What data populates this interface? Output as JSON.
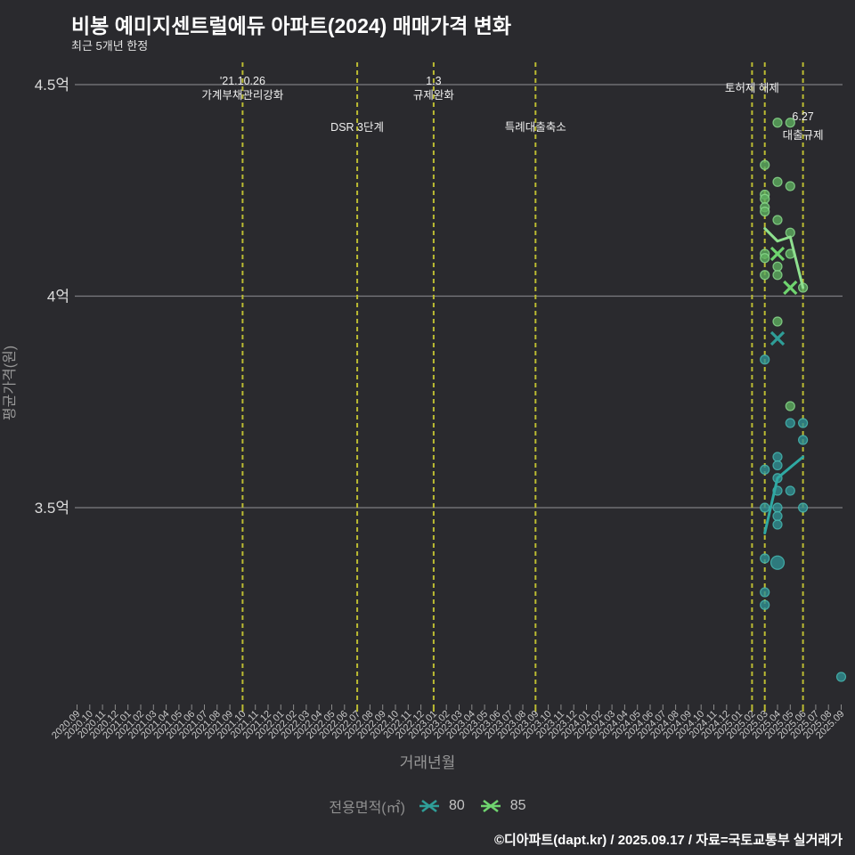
{
  "page": {
    "title": "비봉 예미지센트럴에듀 아파트(2024) 매매가격 변화",
    "subtitle": "최근 5개년 한정",
    "footer": "©디아파트(dapt.kr) / 2025.09.17 / 자료=국토교통부 실거래가"
  },
  "colors": {
    "background": "#2a2a2e",
    "grid_line": "#7d7d82",
    "event_line": "#bcbc32",
    "annotation_text": "#efefef",
    "tick_mark": "#8a8a8a",
    "tick_label": "#c9c9c9",
    "y_tick_label": "#dcdcdc",
    "axis_title": "#979797"
  },
  "chart_data": {
    "type": "scatter",
    "title": "비봉 예미지센트럴에듀 아파트(2024) 매매가격 변화",
    "xlabel": "거래년월",
    "ylabel": "평균가격(원)",
    "unit": "억",
    "y_ticks": [
      {
        "label": "4.5억",
        "value": 4.5
      },
      {
        "label": "4억",
        "value": 4.0
      },
      {
        "label": "3.5억",
        "value": 3.5
      }
    ],
    "y_range": [
      3.0,
      4.55
    ],
    "x_categories": [
      "2020.09",
      "2020.10",
      "2020.11",
      "2020.12",
      "2021.01",
      "2021.02",
      "2021.03",
      "2021.04",
      "2021.05",
      "2021.06",
      "2021.07",
      "2021.08",
      "2021.09",
      "2021.10",
      "2021.11",
      "2021.12",
      "2022.01",
      "2022.02",
      "2022.03",
      "2022.04",
      "2022.05",
      "2022.06",
      "2022.07",
      "2022.08",
      "2022.09",
      "2022.10",
      "2022.11",
      "2022.12",
      "2023.01",
      "2023.02",
      "2023.03",
      "2023.04",
      "2023.05",
      "2023.06",
      "2023.07",
      "2023.08",
      "2023.09",
      "2023.10",
      "2023.11",
      "2023.12",
      "2024.01",
      "2024.02",
      "2024.03",
      "2024.04",
      "2024.05",
      "2024.06",
      "2024.07",
      "2024.08",
      "2024.09",
      "2024.10",
      "2024.11",
      "2024.12",
      "2025.01",
      "2025.02",
      "2025.03",
      "2025.04",
      "2025.05",
      "2025.06",
      "2025.07",
      "2025.08",
      "2025.09"
    ],
    "event_lines": [
      {
        "month": "2021.10"
      },
      {
        "month": "2022.07"
      },
      {
        "month": "2023.01"
      },
      {
        "month": "2023.09"
      },
      {
        "month": "2025.02"
      },
      {
        "month": "2025.03"
      },
      {
        "month": "2025.06"
      }
    ],
    "event_labels": [
      {
        "month": "2021.10",
        "row": "top2",
        "lines": [
          "'21.10.26",
          "가계부채관리강화"
        ]
      },
      {
        "month": "2022.07",
        "row": "mid1",
        "lines": [
          "DSR 3단계"
        ]
      },
      {
        "month": "2023.01",
        "row": "top2",
        "lines": [
          "1.3",
          "규제완화"
        ]
      },
      {
        "month": "2023.09",
        "row": "mid1",
        "lines": [
          "특례대출축소"
        ]
      },
      {
        "month": "2025.02",
        "row": "top1",
        "lines": [
          "토허제 해제"
        ]
      },
      {
        "month": "2025.06",
        "row": "mid2",
        "lines": [
          "6.27",
          "대출규제"
        ]
      }
    ],
    "legend": {
      "title": "전용면적(㎡)",
      "items": [
        "80",
        "85"
      ]
    },
    "series": [
      {
        "name": "80",
        "colors": {
          "dot": "#2f8f91",
          "dot_stroke": "#46b8b2",
          "line": "#2fa9a3",
          "marker": "#2f9e98"
        },
        "points": [
          {
            "m": "2025.03",
            "v": 3.85
          },
          {
            "m": "2025.03",
            "v": 3.59
          },
          {
            "m": "2025.03",
            "v": 3.5
          },
          {
            "m": "2025.03",
            "v": 3.38
          },
          {
            "m": "2025.03",
            "v": 3.3
          },
          {
            "m": "2025.03",
            "v": 3.27
          },
          {
            "m": "2025.04",
            "v": 3.62
          },
          {
            "m": "2025.04",
            "v": 3.6
          },
          {
            "m": "2025.04",
            "v": 3.57
          },
          {
            "m": "2025.04",
            "v": 3.54
          },
          {
            "m": "2025.04",
            "v": 3.5
          },
          {
            "m": "2025.04",
            "v": 3.48
          },
          {
            "m": "2025.04",
            "v": 3.46
          },
          {
            "m": "2025.04",
            "v": 3.37,
            "size": "large"
          },
          {
            "m": "2025.05",
            "v": 3.7
          },
          {
            "m": "2025.05",
            "v": 3.54
          },
          {
            "m": "2025.06",
            "v": 3.7
          },
          {
            "m": "2025.06",
            "v": 3.66
          },
          {
            "m": "2025.06",
            "v": 3.5
          },
          {
            "m": "2025.09",
            "v": 3.1
          }
        ],
        "avg_line": [
          {
            "m": "2025.03",
            "v": 3.44
          },
          {
            "m": "2025.04",
            "v": 3.57
          },
          {
            "m": "2025.06",
            "v": 3.62
          }
        ],
        "x_markers": [
          {
            "m": "2025.04",
            "v": 3.9
          }
        ]
      },
      {
        "name": "85",
        "colors": {
          "dot": "#5cad5e",
          "dot_stroke": "#8ad98c",
          "line": "#8fe08f",
          "marker": "#6fd46f"
        },
        "points": [
          {
            "m": "2025.03",
            "v": 4.31
          },
          {
            "m": "2025.03",
            "v": 4.24
          },
          {
            "m": "2025.03",
            "v": 4.23
          },
          {
            "m": "2025.03",
            "v": 4.21
          },
          {
            "m": "2025.03",
            "v": 4.2
          },
          {
            "m": "2025.03",
            "v": 4.1
          },
          {
            "m": "2025.03",
            "v": 4.09
          },
          {
            "m": "2025.03",
            "v": 4.05
          },
          {
            "m": "2025.04",
            "v": 4.41
          },
          {
            "m": "2025.04",
            "v": 4.27
          },
          {
            "m": "2025.04",
            "v": 4.18
          },
          {
            "m": "2025.04",
            "v": 4.07
          },
          {
            "m": "2025.04",
            "v": 4.05
          },
          {
            "m": "2025.04",
            "v": 3.94
          },
          {
            "m": "2025.05",
            "v": 4.41
          },
          {
            "m": "2025.05",
            "v": 4.26
          },
          {
            "m": "2025.05",
            "v": 4.15
          },
          {
            "m": "2025.05",
            "v": 4.1
          },
          {
            "m": "2025.05",
            "v": 3.74
          },
          {
            "m": "2025.06",
            "v": 4.02
          }
        ],
        "avg_line": [
          {
            "m": "2025.03",
            "v": 4.16
          },
          {
            "m": "2025.04",
            "v": 4.13
          },
          {
            "m": "2025.05",
            "v": 4.14
          },
          {
            "m": "2025.06",
            "v": 4.02
          }
        ],
        "x_markers": [
          {
            "m": "2025.04",
            "v": 4.1
          },
          {
            "m": "2025.05",
            "v": 4.02
          }
        ]
      }
    ]
  }
}
